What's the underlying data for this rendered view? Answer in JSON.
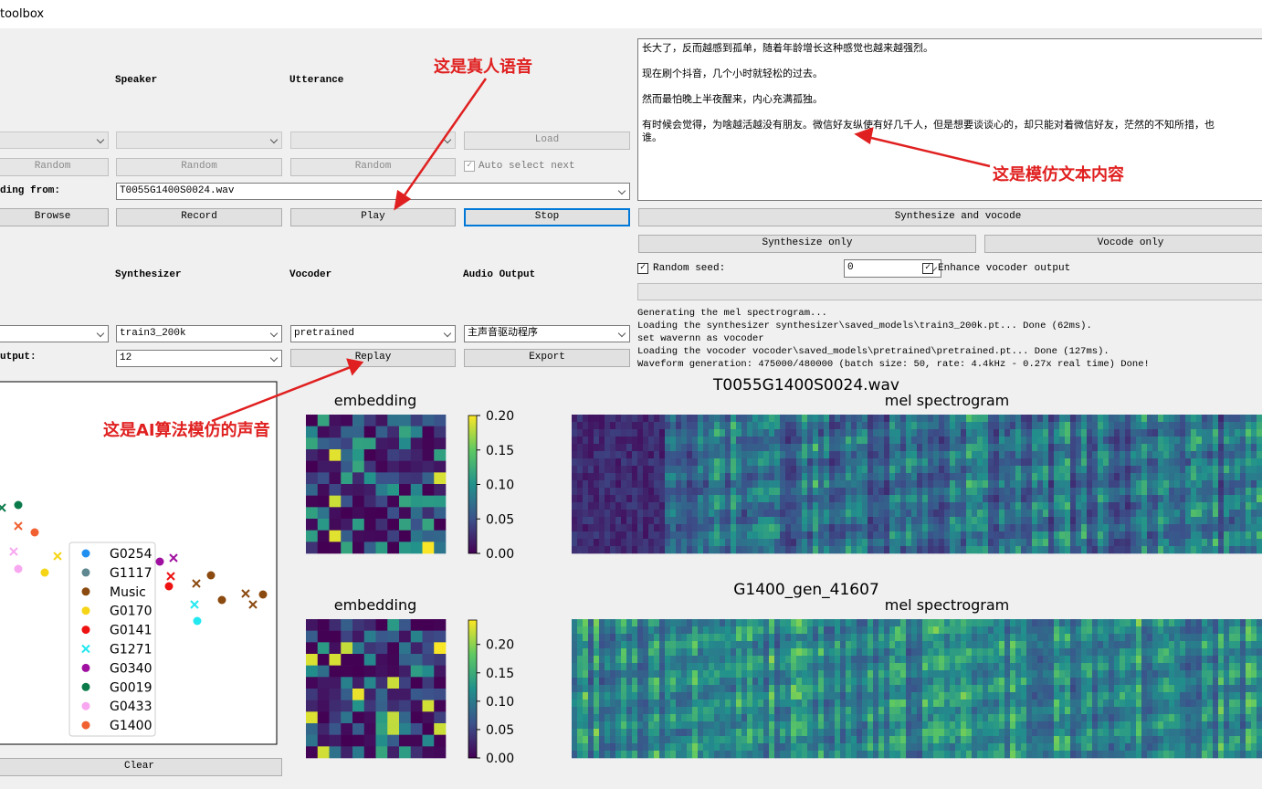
{
  "window": {
    "title": "toolbox"
  },
  "dataset": {
    "speaker_label": "Speaker",
    "utterance_label": "Utterance",
    "load": "Load",
    "random": [
      "Random",
      "Random",
      "Random"
    ],
    "auto_select_next": "Auto select next",
    "reading_from_label": "ding from:",
    "reading_from": "T0055G1400S0024.wav",
    "buttons": [
      "Browse",
      "Record",
      "Play",
      "Stop"
    ]
  },
  "models": {
    "synthesizer_label": "Synthesizer",
    "vocoder_label": "Vocoder",
    "audio_output_label": "Audio Output",
    "synthesizer": "train3_200k",
    "vocoder": "pretrained",
    "audio_output": "主声音驱动程序",
    "output_label": "utput:",
    "output_value": "12",
    "replay": "Replay",
    "export": "Export"
  },
  "text_input": {
    "lines": [
      "长大了，反而越感到孤单，随着年龄增长这种感觉也越来越强烈。",
      "现在刷个抖音，几个小时就轻松的过去。",
      "然而最怕晚上半夜醒来，内心充满孤独。",
      "有时候会觉得，为啥越活越没有朋友。微信好友纵使有好几千人，但是想要谈谈心的，却只能对着微信好友，茫然的不知所措，也",
      "谁。"
    ]
  },
  "generation": {
    "synthesize_and_vocode": "Synthesize and vocode",
    "synthesize_only": "Synthesize only",
    "vocode_only": "Vocode only",
    "random_seed_label": "Random seed:",
    "random_seed": "0",
    "enhance": "Enhance vocoder output"
  },
  "log": [
    "Generating the mel spectrogram...",
    "Loading the synthesizer synthesizer\\saved_models\\train3_200k.pt... Done (62ms).",
    "set wavernn as vocoder",
    "Loading the vocoder vocoder\\saved_models\\pretrained\\pretrained.pt... Done (127ms).",
    "Waveform generation: 475000/480000 (batch size: 50, rate: 4.4kHz - 0.27x real time) Done!"
  ],
  "plots": [
    {
      "title": "T0055G1400S0024.wav",
      "embedding_title": "embedding",
      "spectrogram_title": "mel spectrogram",
      "colorbar_lim": [
        0,
        0.2
      ],
      "colorbar_ticks": [
        {
          "value": 0,
          "label": "0.00"
        },
        {
          "value": 0.05,
          "label": "0.05"
        },
        {
          "value": 0.1,
          "label": "0.10"
        },
        {
          "value": 0.15,
          "label": "0.15"
        },
        {
          "value": 0.2,
          "label": "0.20"
        }
      ]
    },
    {
      "title": "G1400_gen_41607",
      "embedding_title": "embedding",
      "spectrogram_title": "mel spectrogram",
      "colorbar_lim": [
        0,
        0.243
      ],
      "colorbar_ticks": [
        {
          "value": 0,
          "label": "0.00"
        },
        {
          "value": 0.05,
          "label": "0.05"
        },
        {
          "value": 0.1,
          "label": "0.10"
        },
        {
          "value": 0.15,
          "label": "0.15"
        },
        {
          "value": 0.2,
          "label": "0.20"
        }
      ]
    }
  ],
  "projection": {
    "legend": [
      {
        "name": "G0254",
        "color": "#1f8ff0",
        "marker": "o"
      },
      {
        "name": "G1117",
        "color": "#5f8790",
        "marker": "o"
      },
      {
        "name": "Music",
        "color": "#8b4a0f",
        "marker": "o"
      },
      {
        "name": "G0170",
        "color": "#f5d515",
        "marker": "o"
      },
      {
        "name": "G0141",
        "color": "#ee1111",
        "marker": "o"
      },
      {
        "name": "G1271",
        "color": "#22e8f0",
        "marker": "x"
      },
      {
        "name": "G0340",
        "color": "#a010a0",
        "marker": "o"
      },
      {
        "name": "G0019",
        "color": "#0b7a4a",
        "marker": "o"
      },
      {
        "name": "G0433",
        "color": "#f8a8f0",
        "marker": "o"
      },
      {
        "name": "G1400",
        "color": "#f06030",
        "marker": "o"
      }
    ],
    "clear": "Clear"
  },
  "annotations": [
    "这是真人语音",
    "这是模仿文本内容",
    "这是AI算法模仿的声音"
  ]
}
